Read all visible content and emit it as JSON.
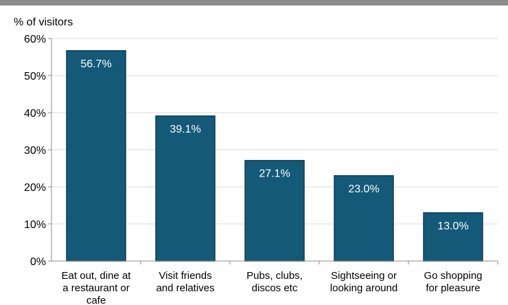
{
  "chart_data": {
    "type": "bar",
    "ylabel": "% of visitors",
    "categories": [
      [
        "Eat out, dine at",
        "a restaurant or",
        "cafe"
      ],
      [
        "Visit friends",
        "and relatives"
      ],
      [
        "Pubs, clubs,",
        "discos etc"
      ],
      [
        "Sightseeing or",
        "looking around"
      ],
      [
        "Go shopping",
        "for pleasure"
      ]
    ],
    "values": [
      56.7,
      39.1,
      27.1,
      23.0,
      13.0
    ],
    "data_labels": [
      "56.7%",
      "39.1%",
      "27.1%",
      "23.0%",
      "13.0%"
    ],
    "yticks": [
      "0%",
      "10%",
      "20%",
      "30%",
      "40%",
      "50%",
      "60%"
    ],
    "ylim": [
      0,
      60
    ],
    "grid": true,
    "colors": {
      "bar": "#145a78",
      "bar_edge": "#0b3c52",
      "grid": "#d9d9d9",
      "axis": "#8c8c8c",
      "topbar": "#8c8c8c"
    }
  }
}
